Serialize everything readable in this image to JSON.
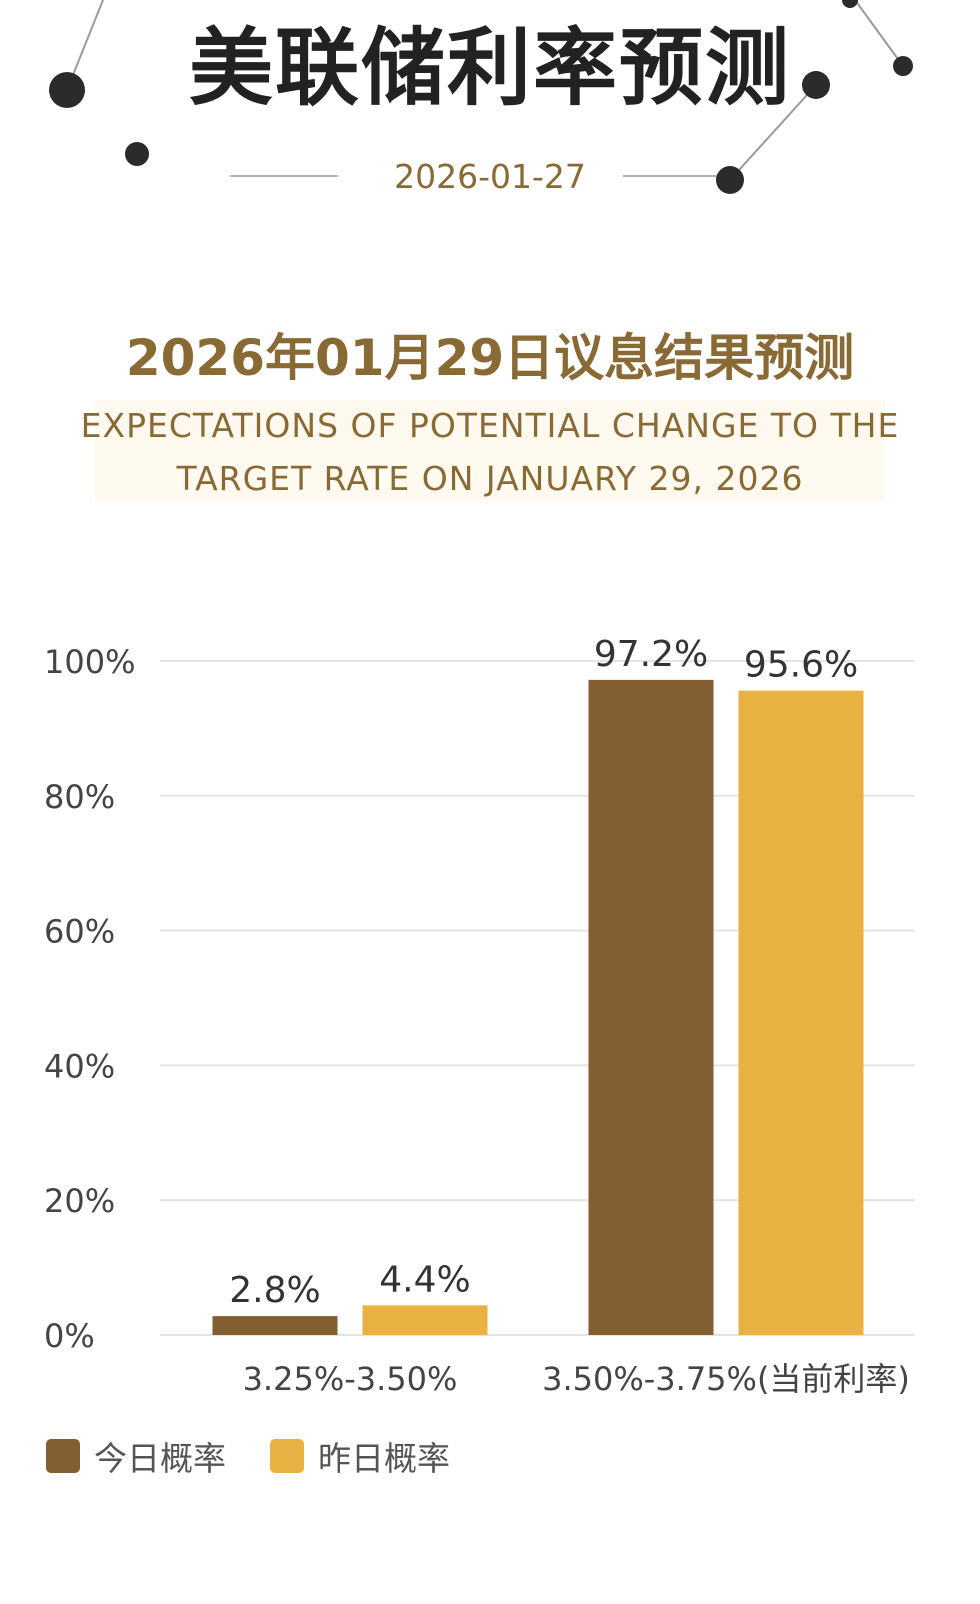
{
  "header": {
    "title": "美联储利率预测",
    "date": "2026-01-27"
  },
  "section": {
    "title": "2026年01月29日议息结果预测",
    "subtitle_line1": "EXPECTATIONS OF POTENTIAL CHANGE TO THE",
    "subtitle_line2": "TARGET RATE ON JANUARY 29, 2026"
  },
  "colors": {
    "today": "#825e32",
    "yesterday": "#e8b142",
    "accent_text": "#8a6a34"
  },
  "chart_data": {
    "type": "bar",
    "categories": [
      "3.25%-3.50%",
      "3.50%-3.75%(当前利率)"
    ],
    "series": [
      {
        "name": "今日概率",
        "values": [
          2.8,
          97.2
        ],
        "labels": [
          "2.8%",
          "97.2%"
        ]
      },
      {
        "name": "昨日概率",
        "values": [
          4.4,
          95.6
        ],
        "labels": [
          "4.4%",
          "95.6%"
        ]
      }
    ],
    "ylim": [
      0,
      100
    ],
    "yticks": [
      0,
      20,
      40,
      60,
      80,
      100
    ],
    "ytick_labels": [
      "0%",
      "20%",
      "40%",
      "60%",
      "80%",
      "100%"
    ],
    "grid": true,
    "legend": "bottom-left",
    "title": "",
    "xlabel": "",
    "ylabel": ""
  },
  "legend": {
    "today_label": "今日概率",
    "yesterday_label": "昨日概率"
  }
}
